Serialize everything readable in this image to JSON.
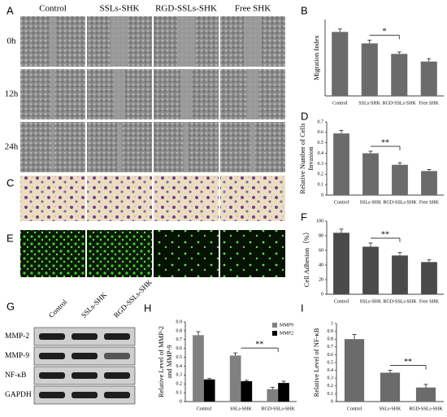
{
  "figure": {
    "panel_labels": [
      "A",
      "B",
      "C",
      "D",
      "E",
      "F",
      "G",
      "H",
      "I"
    ],
    "columns": [
      "Control",
      "SSLs-SHK",
      "RGD-SSLs-SHK",
      "Free SHK"
    ],
    "rows": [
      "0h",
      "12h",
      "24h"
    ],
    "blot": {
      "columns": [
        "Control",
        "SSLs-SHK",
        "RGD-SSLs-SHK"
      ],
      "rows": [
        "MMP-2",
        "MMP-9",
        "NF-κB",
        "GAPDH"
      ]
    }
  },
  "chart_data": [
    {
      "type": "bar",
      "ylabel": [
        "Migration Index"
      ],
      "categories": [
        "Control",
        "SSLs-SHK",
        "RGD-SSLs-SHK",
        "Free SHK"
      ],
      "values": [
        0.67,
        0.55,
        0.44,
        0.36
      ],
      "errors": [
        0.03,
        0.035,
        0.02,
        0.03
      ],
      "color": "#6b6b6b",
      "ylim": [
        0,
        0.8
      ],
      "annotation": "*"
    },
    {
      "type": "bar",
      "ylabel": [
        "Relative Number of Cells",
        "Invasion"
      ],
      "categories": [
        "Control",
        "SSLs-SHK",
        "RGD-SSLs-SHK",
        "Free SHK"
      ],
      "values": [
        0.59,
        0.4,
        0.29,
        0.23
      ],
      "errors": [
        0.03,
        0.02,
        0.02,
        0.015
      ],
      "color": "#6b6b6b",
      "ylim": [
        0,
        0.7
      ],
      "yticks": [
        0,
        0.1,
        0.2,
        0.3,
        0.4,
        0.5,
        0.6,
        0.7
      ],
      "annotation": "**"
    },
    {
      "type": "bar",
      "ylabel": [
        "Cell Adhesion（%）"
      ],
      "categories": [
        "Control",
        "SSLs-SHK",
        "RGD-SSLs-SHK",
        "Free SHK"
      ],
      "values": [
        84,
        65,
        53,
        44
      ],
      "errors": [
        5,
        5,
        4,
        3
      ],
      "color": "#4a4a4a",
      "ylim": [
        0,
        100
      ],
      "yticks": [
        0,
        20,
        40,
        60,
        80,
        100
      ],
      "annotation": "**"
    },
    {
      "type": "bar",
      "ylabel": [
        "Relative Level of MMP-2",
        "and MMP-9"
      ],
      "categories": [
        "Control",
        "SSLs-SHK",
        "RGD-SSLs-SHK"
      ],
      "series": [
        {
          "name": "MMP9",
          "color": "#808080",
          "values": [
            0.75,
            0.52,
            0.14
          ],
          "errors": [
            0.04,
            0.03,
            0.02
          ]
        },
        {
          "name": "MMP2",
          "color": "#000000",
          "values": [
            0.25,
            0.23,
            0.21
          ],
          "errors": [
            0.01,
            0.01,
            0.02
          ]
        }
      ],
      "ylim": [
        0,
        0.9
      ],
      "yticks": [
        0,
        0.1,
        0.2,
        0.3,
        0.4,
        0.5,
        0.6,
        0.7,
        0.8,
        0.9
      ],
      "legend": "upper right",
      "annotation": "**"
    },
    {
      "type": "bar",
      "ylabel": [
        "Relative Level of NF-κB"
      ],
      "categories": [
        "Control",
        "SSLs-SHK",
        "RGD-SSLs-SHK"
      ],
      "values": [
        0.8,
        0.37,
        0.18
      ],
      "errors": [
        0.06,
        0.03,
        0.04
      ],
      "color": "#6b6b6b",
      "ylim": [
        0,
        1
      ],
      "yticks": [
        0,
        0.1,
        0.2,
        0.3,
        0.4,
        0.5,
        0.6,
        0.7,
        0.8,
        0.9,
        1
      ],
      "annotation": "**"
    }
  ]
}
